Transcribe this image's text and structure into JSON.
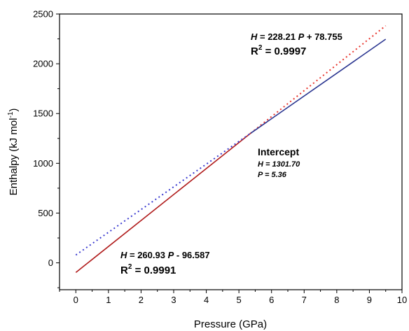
{
  "chart_data": {
    "type": "line",
    "xlabel": "Pressure (GPa)",
    "ylabel": "Enthalpy (kJ mol",
    "ylabel_sup": "-1",
    "ylabel_close": ")",
    "xlim": [
      -0.5,
      10
    ],
    "ylim": [
      -270,
      2500
    ],
    "x_ticks": [
      0,
      1,
      2,
      3,
      4,
      5,
      6,
      7,
      8,
      9,
      10
    ],
    "y_ticks": [
      0,
      500,
      1000,
      1500,
      2000,
      2500
    ],
    "grid": false,
    "series": [
      {
        "fit": "H = 260.93 P - 96.587",
        "slope": 260.93,
        "intercept": -96.587,
        "solid_range": [
          0,
          5.36
        ],
        "dotted_range": [
          5.36,
          9.5
        ],
        "solid_color": "#b01a1a",
        "dotted_color": "#e8342c"
      },
      {
        "fit": "H = 228.21 P + 78.755",
        "slope": 228.21,
        "intercept": 78.755,
        "solid_range": [
          5.36,
          9.5
        ],
        "dotted_range": [
          0,
          5.36
        ],
        "solid_color": "#2a3590",
        "dotted_color": "#3a3ad0"
      }
    ],
    "annotations": {
      "eq_top": {
        "H": "H",
        "eq": " = 228.21 ",
        "P": "P",
        "rest": " + 78.755"
      },
      "r2_top": {
        "R": "R",
        "sup": "2",
        "rest": " = 0.9997"
      },
      "eq_bottom": {
        "H": "H",
        "eq": " = 260.93 ",
        "P": "P",
        "rest": " - 96.587"
      },
      "r2_bottom": {
        "R": "R",
        "sup": "2",
        "rest": " = 0.9991"
      },
      "intercept_title": "Intercept",
      "intercept_h": "H = 1301.70",
      "intercept_p": "P = 5.36"
    }
  }
}
